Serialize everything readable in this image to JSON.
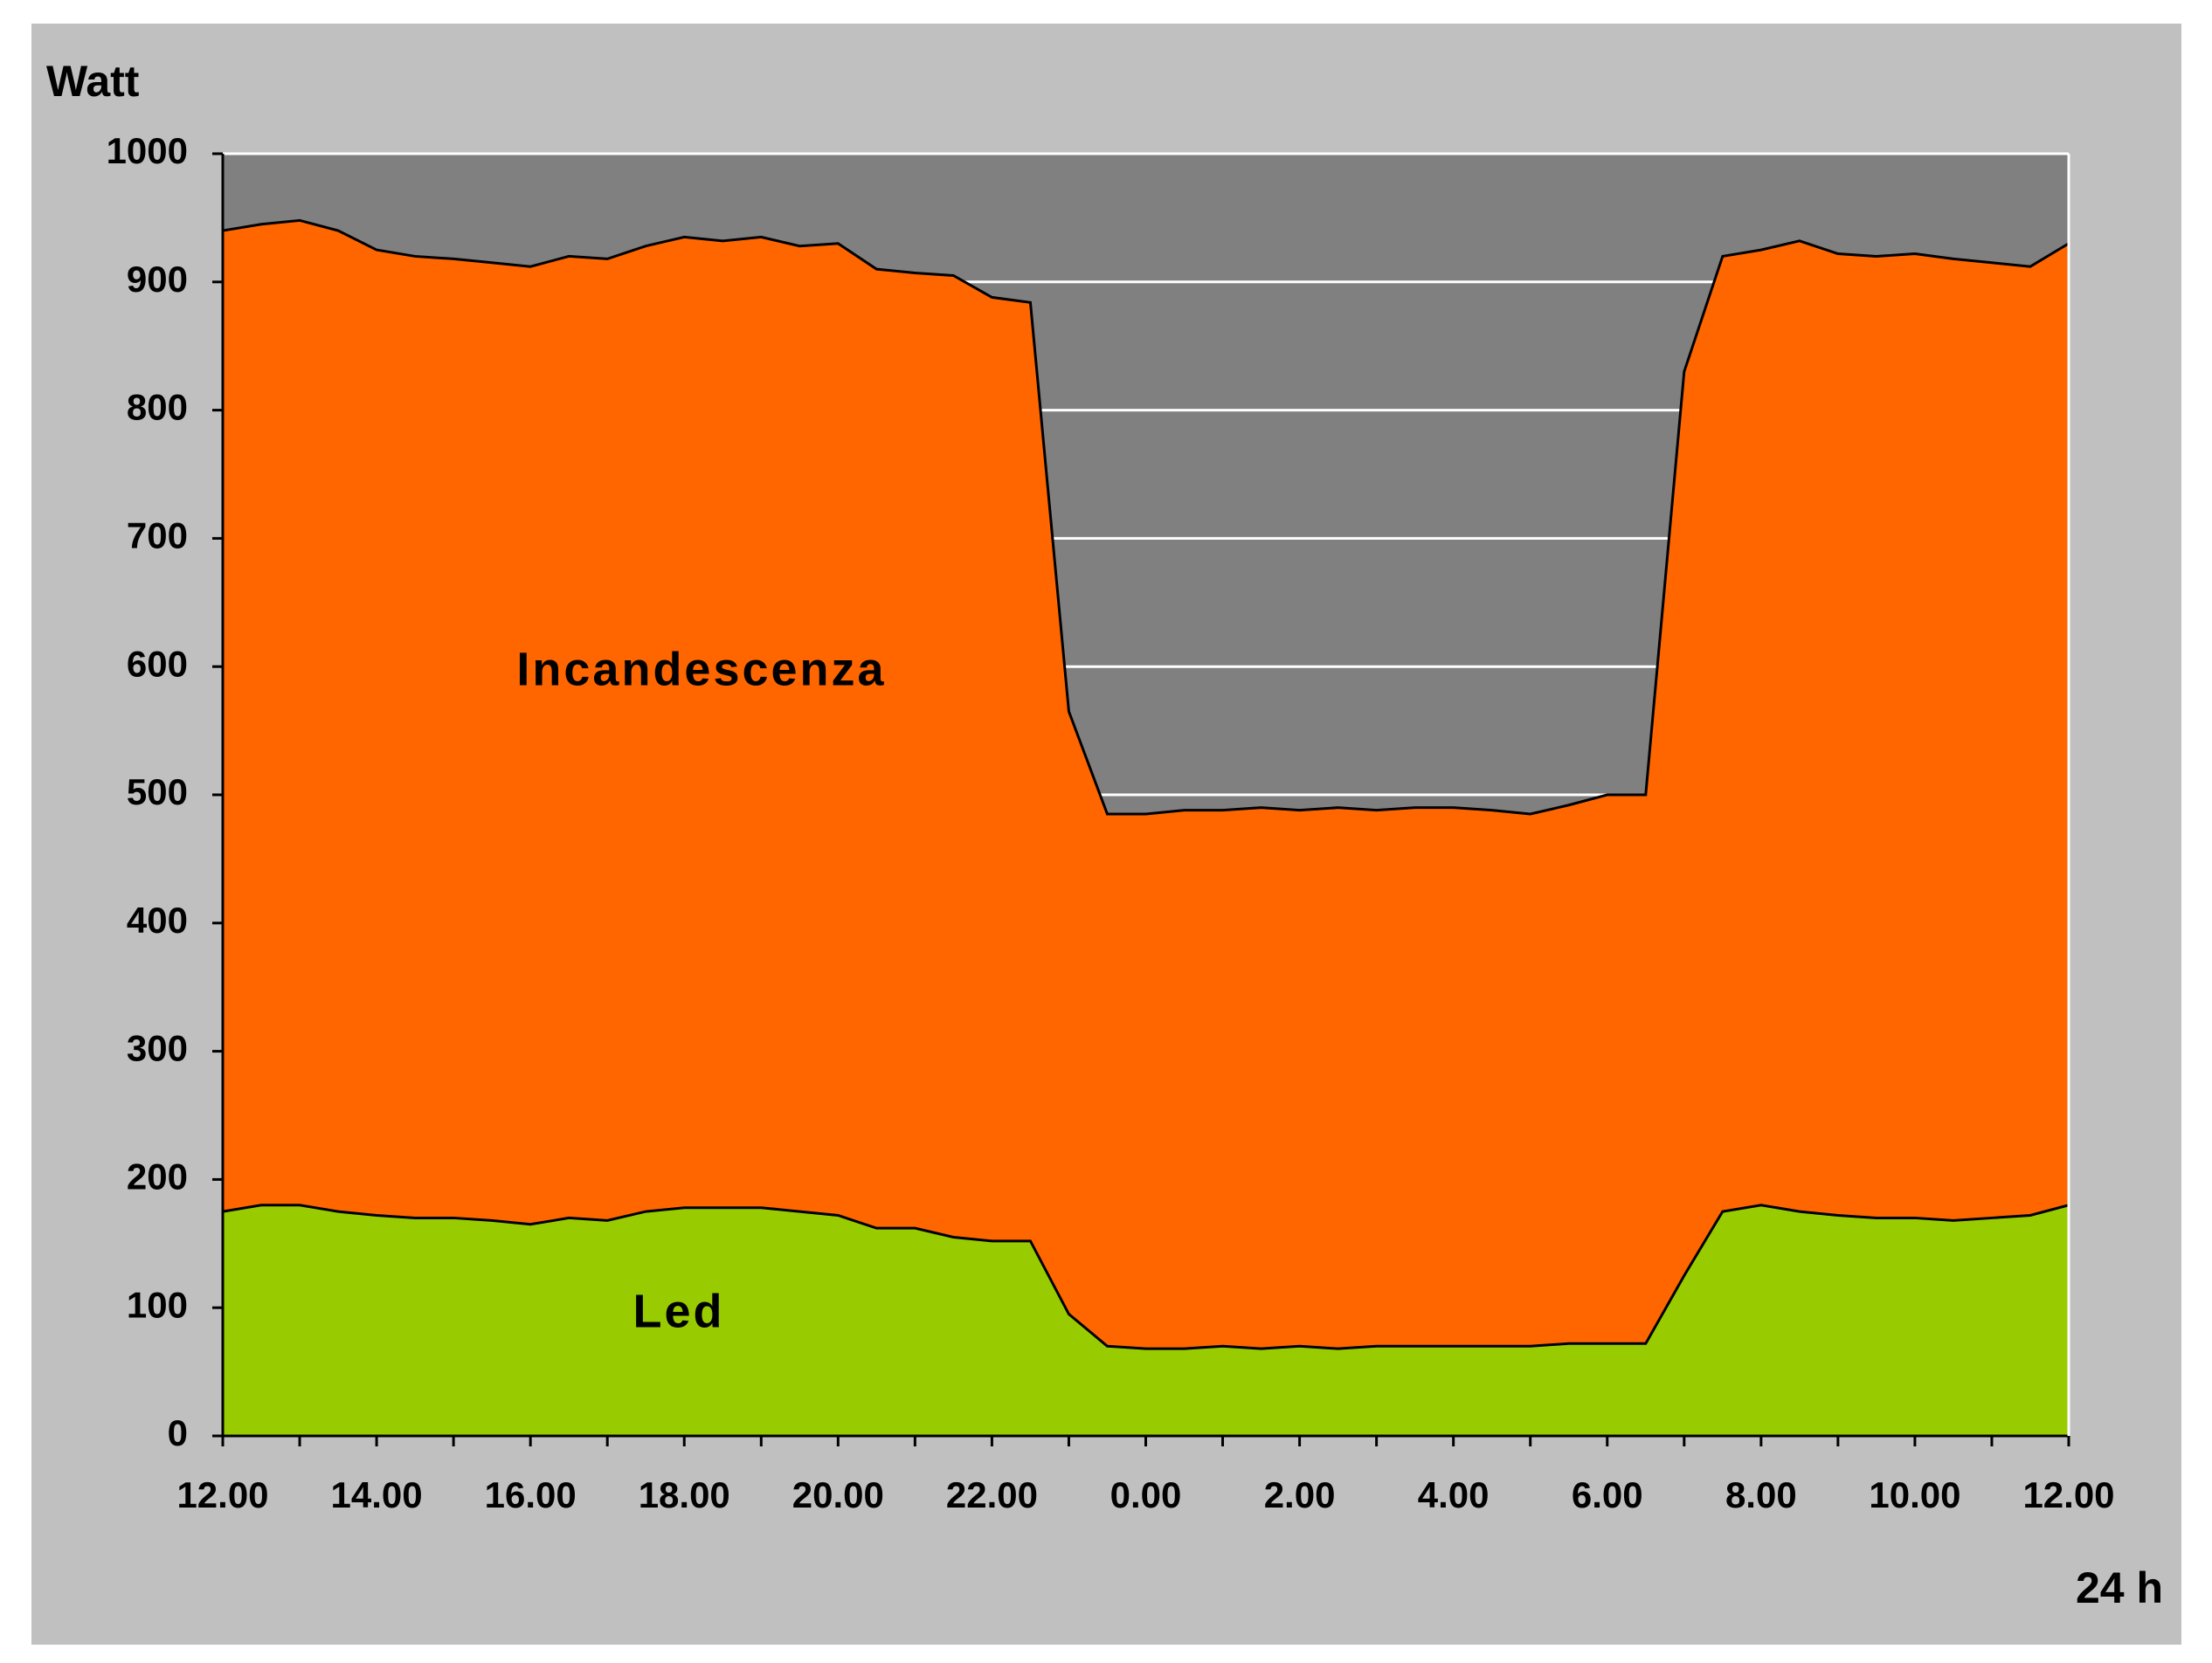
{
  "chart_data": {
    "type": "area",
    "y_label": "Watt",
    "x_label": "24 h",
    "x": [
      0,
      0.5,
      1,
      1.5,
      2,
      2.5,
      3,
      3.5,
      4,
      4.5,
      5,
      5.5,
      6,
      6.5,
      7,
      7.5,
      8,
      8.5,
      9,
      9.5,
      10,
      10.5,
      11,
      11.5,
      12,
      12.5,
      13,
      13.5,
      14,
      14.5,
      15,
      15.5,
      16,
      16.5,
      17,
      17.5,
      18,
      18.5,
      19,
      19.5,
      20,
      20.5,
      21,
      21.5,
      22,
      22.5,
      23,
      23.5,
      24
    ],
    "series": [
      {
        "name": "Incandescenza",
        "color": "#ff6600",
        "values": [
          940,
          945,
          948,
          940,
          925,
          920,
          918,
          915,
          912,
          920,
          918,
          928,
          935,
          932,
          935,
          928,
          930,
          910,
          907,
          905,
          888,
          884,
          565,
          485,
          485,
          488,
          488,
          490,
          488,
          490,
          488,
          490,
          490,
          488,
          485,
          492,
          500,
          500,
          830,
          920,
          925,
          932,
          922,
          920,
          922,
          918,
          915,
          912,
          930
        ]
      },
      {
        "name": "Led",
        "color": "#99cc00",
        "values": [
          175,
          180,
          180,
          175,
          172,
          170,
          170,
          168,
          165,
          170,
          168,
          175,
          178,
          178,
          178,
          175,
          172,
          162,
          162,
          155,
          152,
          152,
          95,
          70,
          68,
          68,
          70,
          68,
          70,
          68,
          70,
          70,
          70,
          70,
          70,
          72,
          72,
          72,
          125,
          175,
          180,
          175,
          172,
          170,
          170,
          168,
          170,
          172,
          180
        ]
      }
    ],
    "xlim": [
      0,
      24
    ],
    "xticks": [
      {
        "value": 0,
        "label": "12.00"
      },
      {
        "value": 2,
        "label": "14.00"
      },
      {
        "value": 4,
        "label": "16.00"
      },
      {
        "value": 6,
        "label": "18.00"
      },
      {
        "value": 8,
        "label": "20.00"
      },
      {
        "value": 10,
        "label": "22.00"
      },
      {
        "value": 12,
        "label": "0.00"
      },
      {
        "value": 14,
        "label": "2.00"
      },
      {
        "value": 16,
        "label": "4.00"
      },
      {
        "value": 18,
        "label": "6.00"
      },
      {
        "value": 20,
        "label": "8.00"
      },
      {
        "value": 22,
        "label": "10.00"
      },
      {
        "value": 24,
        "label": "12.00"
      }
    ],
    "ylim": [
      0,
      1000
    ],
    "yticks": [
      0,
      100,
      200,
      300,
      400,
      500,
      600,
      700,
      800,
      900,
      1000
    ],
    "grid": true,
    "plot_background": "#808080",
    "background": "#c0c0c0"
  }
}
